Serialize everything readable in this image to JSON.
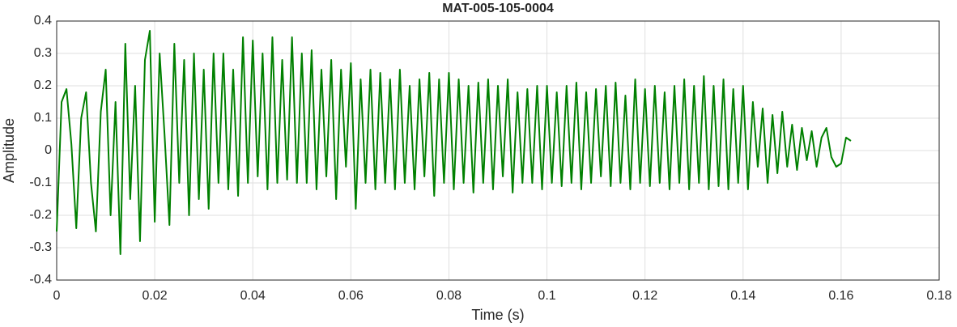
{
  "chart_data": {
    "type": "line",
    "title": "MAT-005-105-0004",
    "x_label": "Time (s)",
    "y_label": "Amplitude",
    "xlim": [
      0,
      0.18
    ],
    "xticks": [
      0,
      0.02,
      0.04,
      0.06,
      0.08,
      0.1,
      0.12,
      0.14,
      0.16,
      0.18
    ],
    "ylim": [
      -0.4,
      0.4
    ],
    "yticks": [
      -0.4,
      -0.3,
      -0.2,
      -0.1,
      0,
      0.1,
      0.2,
      0.3,
      0.4
    ],
    "grid": true,
    "series": [
      {
        "color": "#008000",
        "x": [
          0,
          0.001,
          0.002,
          0.003,
          0.004,
          0.005,
          0.006,
          0.007,
          0.008,
          0.009,
          0.01,
          0.011,
          0.012,
          0.013,
          0.014,
          0.015,
          0.016,
          0.017,
          0.018,
          0.019,
          0.02,
          0.021,
          0.022,
          0.023,
          0.024,
          0.025,
          0.026,
          0.027,
          0.028,
          0.029,
          0.03,
          0.031,
          0.032,
          0.033,
          0.034,
          0.035,
          0.036,
          0.037,
          0.038,
          0.039,
          0.04,
          0.041,
          0.042,
          0.043,
          0.044,
          0.045,
          0.046,
          0.047,
          0.048,
          0.049,
          0.05,
          0.051,
          0.052,
          0.053,
          0.054,
          0.055,
          0.056,
          0.057,
          0.058,
          0.059,
          0.06,
          0.061,
          0.062,
          0.063,
          0.064,
          0.065,
          0.066,
          0.067,
          0.068,
          0.069,
          0.07,
          0.071,
          0.072,
          0.073,
          0.074,
          0.075,
          0.076,
          0.077,
          0.078,
          0.079,
          0.08,
          0.081,
          0.082,
          0.083,
          0.084,
          0.085,
          0.086,
          0.087,
          0.088,
          0.089,
          0.09,
          0.091,
          0.092,
          0.093,
          0.094,
          0.095,
          0.096,
          0.097,
          0.098,
          0.099,
          0.1,
          0.101,
          0.102,
          0.103,
          0.104,
          0.105,
          0.106,
          0.107,
          0.108,
          0.109,
          0.11,
          0.111,
          0.112,
          0.113,
          0.114,
          0.115,
          0.116,
          0.117,
          0.118,
          0.119,
          0.12,
          0.121,
          0.122,
          0.123,
          0.124,
          0.125,
          0.126,
          0.127,
          0.128,
          0.129,
          0.13,
          0.131,
          0.132,
          0.133,
          0.134,
          0.135,
          0.136,
          0.137,
          0.138,
          0.139,
          0.14,
          0.141,
          0.142,
          0.143,
          0.144,
          0.145,
          0.146,
          0.147,
          0.148,
          0.149,
          0.15,
          0.151,
          0.152,
          0.153,
          0.154,
          0.155,
          0.156,
          0.157,
          0.158,
          0.159,
          0.16,
          0.161,
          0.162
        ],
        "values": [
          -0.25,
          0.15,
          0.19,
          0.02,
          -0.24,
          0.1,
          0.18,
          -0.1,
          -0.25,
          0.12,
          0.25,
          -0.2,
          0.15,
          -0.32,
          0.33,
          -0.15,
          0.2,
          -0.28,
          0.28,
          0.37,
          -0.22,
          0.3,
          0.05,
          -0.23,
          0.33,
          -0.1,
          0.28,
          -0.2,
          0.3,
          -0.15,
          0.25,
          -0.18,
          0.3,
          -0.1,
          0.3,
          -0.12,
          0.25,
          -0.14,
          0.35,
          -0.1,
          0.34,
          -0.08,
          0.3,
          -0.12,
          0.35,
          -0.1,
          0.28,
          -0.09,
          0.35,
          -0.1,
          0.3,
          -0.1,
          0.31,
          -0.12,
          0.25,
          -0.08,
          0.28,
          -0.15,
          0.25,
          -0.05,
          0.27,
          -0.18,
          0.22,
          -0.1,
          0.25,
          -0.12,
          0.24,
          -0.1,
          0.22,
          -0.12,
          0.25,
          -0.1,
          0.2,
          -0.12,
          0.22,
          -0.08,
          0.24,
          -0.14,
          0.22,
          -0.1,
          0.24,
          -0.12,
          0.22,
          -0.1,
          0.2,
          -0.13,
          0.21,
          -0.1,
          0.22,
          -0.12,
          0.2,
          -0.08,
          0.22,
          -0.13,
          0.18,
          -0.1,
          0.19,
          -0.1,
          0.2,
          -0.12,
          0.2,
          -0.1,
          0.18,
          -0.11,
          0.2,
          -0.1,
          0.21,
          -0.12,
          0.18,
          -0.1,
          0.19,
          -0.08,
          0.2,
          -0.11,
          0.21,
          -0.1,
          0.17,
          -0.12,
          0.22,
          -0.1,
          0.19,
          -0.11,
          0.2,
          -0.1,
          0.18,
          -0.12,
          0.2,
          -0.1,
          0.22,
          -0.12,
          0.2,
          -0.1,
          0.23,
          -0.12,
          0.2,
          -0.11,
          0.22,
          -0.12,
          0.19,
          -0.1,
          0.2,
          -0.12,
          0.15,
          -0.05,
          0.13,
          -0.1,
          0.11,
          -0.07,
          0.12,
          -0.05,
          0.08,
          -0.06,
          0.07,
          -0.03,
          0.06,
          -0.05,
          0.04,
          0.07,
          -0.02,
          -0.05,
          -0.04,
          0.04,
          0.03
        ]
      }
    ]
  }
}
